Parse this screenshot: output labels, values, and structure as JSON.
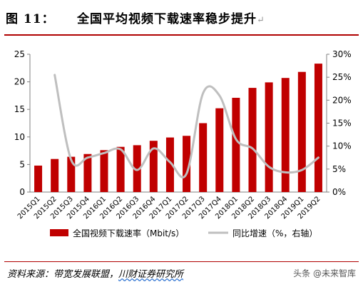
{
  "figure": {
    "label": "图 11：",
    "title": "全国平均视频下载速率稳步提升"
  },
  "source": {
    "prefix": "资料来源：带宽发展联盟，",
    "highlight": "川财证券研究所"
  },
  "watermark": "头条 @未来智库",
  "colors": {
    "bar": "#c00000",
    "line": "#bfbfbf",
    "axis": "#808080",
    "text": "#000000"
  },
  "chart_data": {
    "type": "bar",
    "categories": [
      "2015Q1",
      "2015Q2",
      "2015Q3",
      "2015Q4",
      "2016Q1",
      "2016Q2",
      "2016Q3",
      "2016Q4",
      "2017Q1",
      "2017Q2",
      "2017Q3",
      "2017Q4",
      "2018Q1",
      "2018Q2",
      "2018Q3",
      "2018Q4",
      "2019Q1",
      "2019Q2"
    ],
    "series": [
      {
        "name": "全国视频下载速率（Mbit/s）",
        "type": "bar",
        "axis": "left",
        "values": [
          4.8,
          6.0,
          6.4,
          6.9,
          7.6,
          8.2,
          8.5,
          9.3,
          9.9,
          10.2,
          12.5,
          15.2,
          17.1,
          18.9,
          19.9,
          20.7,
          21.8,
          23.3
        ]
      },
      {
        "name": "同比增速（%，右轴）",
        "type": "line",
        "axis": "right",
        "values": [
          null,
          25.5,
          7.0,
          7.5,
          8.5,
          9.3,
          4.8,
          9.5,
          6.5,
          4.0,
          21.5,
          21.0,
          11.5,
          9.5,
          5.5,
          4.3,
          4.8,
          7.5
        ]
      }
    ],
    "y_left": {
      "min": 0,
      "max": 25,
      "ticks": [
        "0",
        "5",
        "10",
        "15",
        "20",
        "25"
      ]
    },
    "y_right": {
      "min": 0,
      "max": 30,
      "ticks": [
        "0%",
        "5%",
        "10%",
        "15%",
        "20%",
        "25%",
        "30%"
      ]
    },
    "grid": false,
    "legend_position": "bottom"
  }
}
